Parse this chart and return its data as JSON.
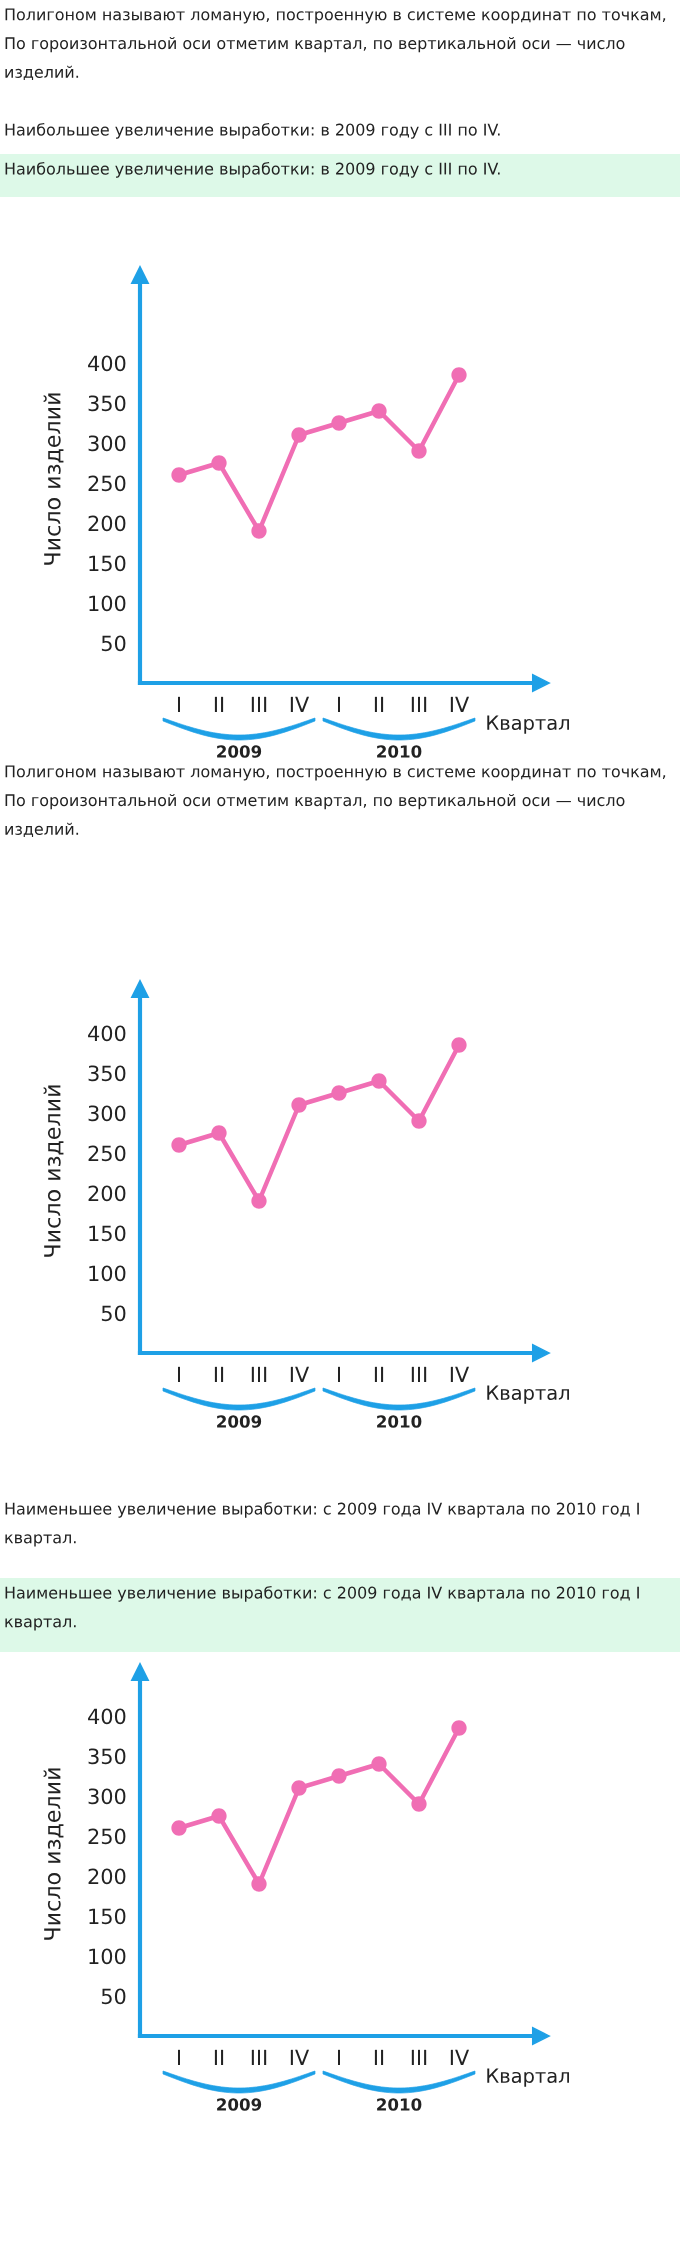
{
  "chart_data": [
    {
      "type": "other",
      "annotations": [
        "Полигоном называют ломаную, построенную в системе координат по точкам,\nПо гороизонтальной оси отметим квартал, по вертикальной оси — число изделий.",
        "Наибольшее увеличение выработки: в 2009 году с III по IV.",
        "Наибольшее увеличение выработки: в 2009 году с III по IV."
      ]
    },
    {
      "type": "line",
      "xlabel": "Квартал",
      "ylabel": "Число изделий",
      "categories": [
        "I",
        "II",
        "III",
        "IV",
        "I",
        "II",
        "III",
        "IV"
      ],
      "marker": "circle",
      "series": [
        {
          "color": "#f06eb4",
          "values": [
            260,
            275,
            190,
            310,
            325,
            340,
            290,
            385
          ]
        }
      ],
      "ylim": [
        0,
        510
      ],
      "yticks": [
        50,
        100,
        150,
        200,
        250,
        300,
        350,
        400
      ],
      "annotations": [
        "2009",
        "2010"
      ]
    },
    {
      "type": "other",
      "annotations": [
        "Полигоном называют ломаную, построенную в системе координат по точкам,\nПо гороизонтальной оси отметим квартал, по вертикальной оси — число изделий."
      ]
    },
    {
      "type": "line",
      "xlabel": "Квартал",
      "ylabel": "Число изделий",
      "categories": [
        "I",
        "II",
        "III",
        "IV",
        "I",
        "II",
        "III",
        "IV"
      ],
      "marker": "circle",
      "series": [
        {
          "color": "#f06eb4",
          "values": [
            260,
            275,
            190,
            310,
            325,
            340,
            290,
            385
          ]
        }
      ],
      "ylim": [
        0,
        455
      ],
      "yticks": [
        50,
        100,
        150,
        200,
        250,
        300,
        350,
        400
      ],
      "annotations": [
        "2009",
        "2010"
      ]
    },
    {
      "type": "other",
      "annotations": [
        "Наименьшее увеличение выработки: с 2009 года IV квартала по 2010 год I квартал.",
        "Наименьшее увеличение выработки: с 2009 года IV квартала по 2010 год I квартал."
      ]
    },
    {
      "type": "line",
      "xlabel": "Квартал",
      "ylabel": "Число изделий",
      "categories": [
        "I",
        "II",
        "III",
        "IV",
        "I",
        "II",
        "III",
        "IV"
      ],
      "marker": "circle",
      "series": [
        {
          "color": "#f06eb4",
          "values": [
            260,
            275,
            190,
            310,
            325,
            340,
            290,
            385
          ]
        }
      ],
      "ylim": [
        0,
        455
      ],
      "yticks": [
        50,
        100,
        150,
        200,
        250,
        300,
        350,
        400
      ],
      "annotations": [
        "2009",
        "2010"
      ]
    }
  ]
}
